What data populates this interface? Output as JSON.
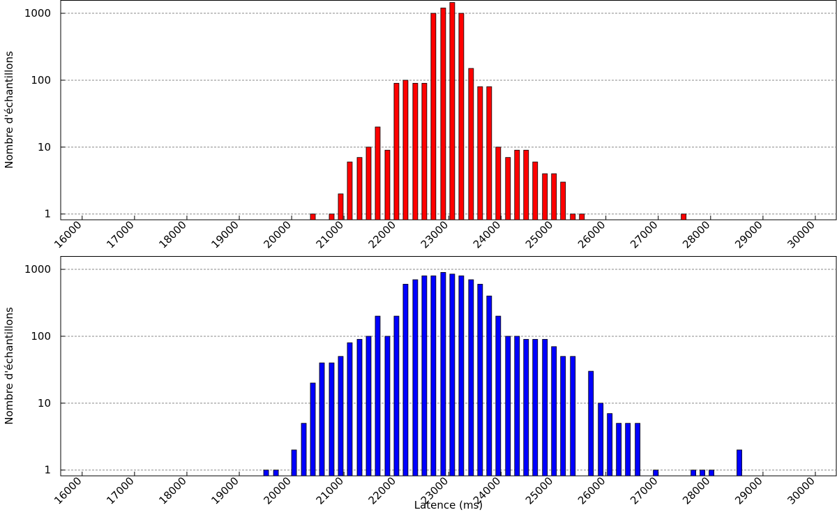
{
  "chart_data": [
    {
      "type": "bar",
      "ylabel": "Nombre d'échantillons",
      "yscale": "log",
      "grid": true,
      "xlim": [
        15590,
        30400
      ],
      "ylim": [
        0.82,
        1580
      ],
      "xticks": [
        16000,
        17000,
        18000,
        19000,
        20000,
        21000,
        22000,
        23000,
        24000,
        25000,
        26000,
        27000,
        28000,
        29000,
        30000
      ],
      "yticks": [
        1,
        10,
        100,
        1000
      ],
      "series": [
        {
          "color": "#ff0000",
          "x": [
            20405,
            20764,
            20937,
            21110,
            21297,
            21470,
            21643,
            21829,
            22002,
            22175,
            22361,
            22534,
            22707,
            22894,
            23067,
            23240,
            23426,
            23599,
            23772,
            23945,
            24131,
            24304,
            24477,
            24650,
            24836,
            25009,
            25182,
            25369,
            25542,
            27485
          ],
          "values": [
            1,
            1,
            2,
            6,
            7,
            10,
            20,
            9,
            90,
            100,
            90,
            90,
            1000,
            1200,
            1450,
            1000,
            150,
            80,
            80,
            10,
            7,
            9,
            9,
            6,
            4,
            4,
            3,
            1,
            1,
            1
          ]
        }
      ]
    },
    {
      "type": "bar",
      "ylabel": "Nombre d'échantillons",
      "xlabel": "Latence (ms)",
      "yscale": "log",
      "grid": true,
      "xlim": [
        15590,
        30400
      ],
      "ylim": [
        0.82,
        1580
      ],
      "xticks": [
        16000,
        17000,
        18000,
        19000,
        20000,
        21000,
        22000,
        23000,
        24000,
        25000,
        26000,
        27000,
        28000,
        29000,
        30000
      ],
      "yticks": [
        1,
        10,
        100,
        1000
      ],
      "series": [
        {
          "color": "#0000ff",
          "x": [
            19513,
            19700,
            20046,
            20232,
            20405,
            20578,
            20764,
            20937,
            21110,
            21297,
            21470,
            21643,
            21829,
            22002,
            22175,
            22361,
            22534,
            22707,
            22894,
            23067,
            23240,
            23426,
            23599,
            23772,
            23945,
            24131,
            24304,
            24477,
            24650,
            24836,
            25009,
            25182,
            25369,
            25715,
            25901,
            26074,
            26247,
            26420,
            26606,
            26952,
            27671,
            27844,
            28017,
            28549
          ],
          "values": [
            1,
            1,
            2,
            5,
            20,
            40,
            40,
            50,
            80,
            90,
            100,
            200,
            100,
            200,
            600,
            700,
            800,
            800,
            900,
            850,
            800,
            700,
            600,
            400,
            200,
            100,
            100,
            90,
            90,
            90,
            70,
            50,
            50,
            30,
            10,
            7,
            5,
            5,
            5,
            1,
            1,
            1,
            1,
            2
          ]
        }
      ]
    }
  ]
}
